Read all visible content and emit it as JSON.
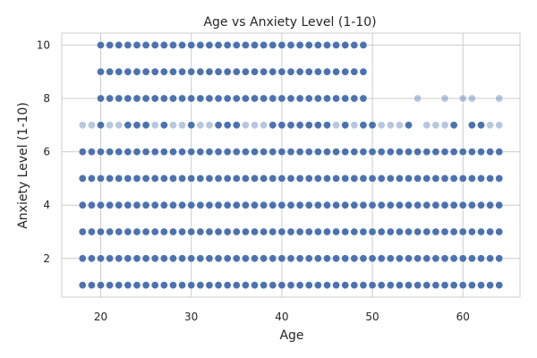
{
  "chart_data": {
    "type": "scatter",
    "title": "Age vs Anxiety Level (1-10)",
    "xlabel": "Age",
    "ylabel": "Anxiety Level (1-10)",
    "xlim": [
      15.7,
      66.3
    ],
    "ylim": [
      0.55,
      10.45
    ],
    "xticks": [
      20,
      30,
      40,
      50,
      60
    ],
    "yticks": [
      2,
      4,
      6,
      8,
      10
    ],
    "grid": true,
    "marker_color": "#4c72b0",
    "rows": [
      {
        "y": 1,
        "x_min": 18,
        "x_max": 64,
        "faded": []
      },
      {
        "y": 2,
        "x_min": 18,
        "x_max": 64,
        "faded": []
      },
      {
        "y": 3,
        "x_min": 18,
        "x_max": 64,
        "faded": []
      },
      {
        "y": 4,
        "x_min": 18,
        "x_max": 64,
        "faded": []
      },
      {
        "y": 5,
        "x_min": 18,
        "x_max": 64,
        "faded": []
      },
      {
        "y": 6,
        "x_min": 18,
        "x_max": 64,
        "faded": []
      },
      {
        "y": 7,
        "x": [
          18,
          19,
          20,
          21,
          22,
          23,
          24,
          25,
          26,
          27,
          28,
          29,
          30,
          31,
          32,
          33,
          34,
          35,
          36,
          37,
          38,
          39,
          40,
          41,
          42,
          43,
          44,
          45,
          46,
          47,
          48,
          49,
          50,
          51,
          52,
          53,
          54,
          56,
          57,
          58,
          59,
          61,
          62,
          63,
          64
        ],
        "faded": [
          18,
          19,
          21,
          22,
          26,
          28,
          29,
          31,
          32,
          36,
          37,
          38,
          46,
          48,
          51,
          52,
          53,
          56,
          57,
          58,
          63,
          64
        ]
      },
      {
        "y": 8,
        "x": [
          20,
          21,
          22,
          23,
          24,
          25,
          26,
          27,
          28,
          29,
          30,
          31,
          32,
          33,
          34,
          35,
          36,
          37,
          38,
          39,
          40,
          41,
          42,
          43,
          44,
          45,
          46,
          47,
          48,
          49,
          55,
          58,
          60,
          61,
          64
        ],
        "faded": [
          55,
          58,
          60,
          61,
          64
        ]
      },
      {
        "y": 9,
        "x_min": 20,
        "x_max": 49,
        "faded": []
      },
      {
        "y": 10,
        "x_min": 20,
        "x_max": 49,
        "faded": []
      }
    ]
  }
}
